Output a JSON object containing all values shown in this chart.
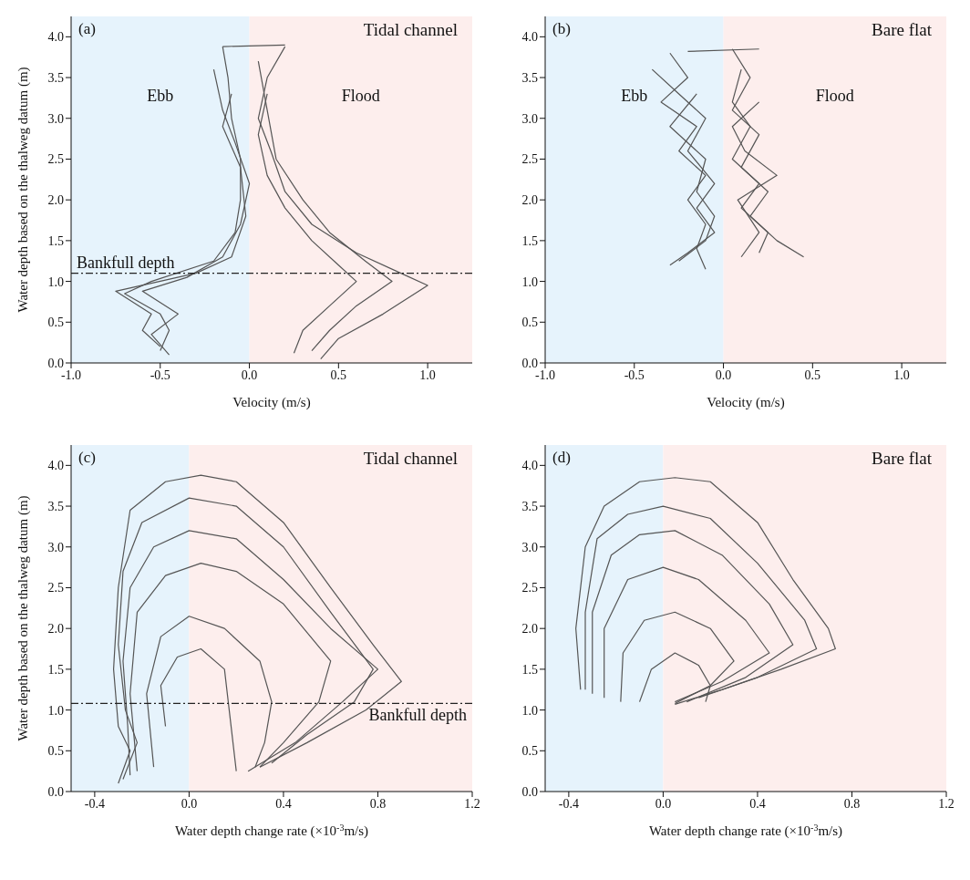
{
  "chart_data": [
    {
      "type": "line",
      "annotations": [
        "(a)",
        "Tidal channel"
      ],
      "xlabel": "Velocity (m/s)",
      "ylabel": "Water depth based on the thalweg datum (m)",
      "xlim": [
        -1,
        1.25
      ],
      "xticks": [
        {
          "value": -1,
          "label": "-1.0"
        },
        {
          "value": -0.5,
          "label": "-0.5"
        },
        {
          "value": 0,
          "label": "0.0"
        },
        {
          "value": 0.5,
          "label": "0.5"
        },
        {
          "value": 1,
          "label": "1.0"
        }
      ],
      "ylim": [
        0,
        4.25
      ],
      "yticks": [
        {
          "value": 0,
          "label": "0.0"
        },
        {
          "value": 0.5,
          "label": "0.5"
        },
        {
          "value": 1,
          "label": "1.0"
        },
        {
          "value": 1.5,
          "label": "1.5"
        },
        {
          "value": 2,
          "label": "2.0"
        },
        {
          "value": 2.5,
          "label": "2.5"
        },
        {
          "value": 3,
          "label": "3.0"
        },
        {
          "value": 3.5,
          "label": "3.5"
        },
        {
          "value": 4,
          "label": "4.0"
        }
      ],
      "grid": false,
      "legend": false,
      "marker": "none",
      "bands": [
        {
          "axis": "x",
          "from": -1,
          "to": 0,
          "label": "Ebb",
          "color": "#e6f3fc"
        },
        {
          "axis": "x",
          "from": 0,
          "to": 1.25,
          "label": "Flood",
          "color": "#fdeeed"
        }
      ],
      "ref_lines": [
        {
          "axis": "y",
          "value": 1.1,
          "label": "Bankfull depth",
          "line_style": "dashed",
          "color": "#222222"
        }
      ],
      "series": [
        {
          "color": "#555555",
          "x": [
            -0.15,
            -0.12,
            -0.1,
            -0.05,
            -0.05,
            -0.08,
            -0.2,
            -0.55,
            -0.7,
            -0.5,
            -0.45,
            -0.5
          ],
          "values": [
            3.88,
            3.5,
            3.0,
            2.5,
            2.0,
            1.6,
            1.25,
            1.0,
            0.85,
            0.6,
            0.4,
            0.15
          ]
        },
        {
          "color": "#555555",
          "x": [
            -0.2,
            -0.15,
            -0.08,
            0,
            -0.05,
            -0.15,
            -0.35,
            -0.6,
            -0.4,
            -0.55,
            -0.45
          ],
          "values": [
            3.6,
            3.1,
            2.7,
            2.2,
            1.7,
            1.3,
            1.05,
            0.88,
            0.6,
            0.35,
            0.1
          ]
        },
        {
          "color": "#555555",
          "x": [
            -0.1,
            -0.15,
            -0.05,
            -0.02,
            -0.1,
            -0.3,
            -0.75,
            -0.55,
            -0.6,
            -0.5
          ],
          "values": [
            3.3,
            2.9,
            2.4,
            1.8,
            1.3,
            1.1,
            0.88,
            0.6,
            0.4,
            0.2
          ]
        },
        {
          "color": "#555555",
          "x": [
            0.2,
            0.1,
            0.05,
            0.12,
            0.2,
            0.35,
            0.6,
            0.85,
            1.0,
            0.75,
            0.5,
            0.4
          ],
          "values": [
            3.88,
            3.5,
            3.0,
            2.6,
            2.1,
            1.7,
            1.35,
            1.1,
            0.95,
            0.6,
            0.3,
            0.05
          ]
        },
        {
          "color": "#555555",
          "x": [
            0.05,
            0.1,
            0.15,
            0.3,
            0.45,
            0.65,
            0.8,
            0.6,
            0.45,
            0.35
          ],
          "values": [
            3.7,
            3.1,
            2.5,
            2.0,
            1.6,
            1.25,
            1.0,
            0.7,
            0.4,
            0.15
          ]
        },
        {
          "color": "#555555",
          "x": [
            0.1,
            0.05,
            0.1,
            0.2,
            0.35,
            0.5,
            0.6,
            0.45,
            0.3,
            0.25
          ],
          "values": [
            3.3,
            2.8,
            2.3,
            1.9,
            1.5,
            1.2,
            1.0,
            0.7,
            0.4,
            0.12
          ]
        },
        {
          "color": "#555555",
          "x": [
            -0.15,
            0.2
          ],
          "values": [
            3.88,
            3.9
          ]
        }
      ]
    },
    {
      "type": "line",
      "annotations": [
        "(b)",
        "Bare flat"
      ],
      "xlabel": "Velocity (m/s)",
      "xlim": [
        -1,
        1.25
      ],
      "xticks": [
        {
          "value": -1,
          "label": "-1.0"
        },
        {
          "value": -0.5,
          "label": "-0.5"
        },
        {
          "value": 0,
          "label": "0.0"
        },
        {
          "value": 0.5,
          "label": "0.5"
        },
        {
          "value": 1,
          "label": "1.0"
        }
      ],
      "ylim": [
        0,
        4.25
      ],
      "yticks": [
        {
          "value": 0,
          "label": "0.0"
        },
        {
          "value": 0.5,
          "label": "0.5"
        },
        {
          "value": 1,
          "label": "1.0"
        },
        {
          "value": 1.5,
          "label": "1.5"
        },
        {
          "value": 2,
          "label": "2.0"
        },
        {
          "value": 2.5,
          "label": "2.5"
        },
        {
          "value": 3,
          "label": "3.0"
        },
        {
          "value": 3.5,
          "label": "3.5"
        },
        {
          "value": 4,
          "label": "4.0"
        }
      ],
      "grid": false,
      "legend": false,
      "marker": "none",
      "bands": [
        {
          "axis": "x",
          "from": -1,
          "to": 0,
          "label": "Ebb",
          "color": "#e6f3fc"
        },
        {
          "axis": "x",
          "from": 0,
          "to": 1.25,
          "label": "Flood",
          "color": "#fdeeed"
        }
      ],
      "series": [
        {
          "color": "#555555",
          "x": [
            -0.3,
            -0.2,
            -0.35,
            -0.15,
            -0.25,
            -0.1,
            -0.2,
            -0.1,
            -0.15,
            -0.1
          ],
          "values": [
            3.8,
            3.5,
            3.2,
            2.9,
            2.6,
            2.3,
            2.0,
            1.7,
            1.4,
            1.15
          ]
        },
        {
          "color": "#555555",
          "x": [
            -0.4,
            -0.25,
            -0.1,
            -0.2,
            -0.05,
            -0.15,
            -0.05,
            -0.2,
            -0.3
          ],
          "values": [
            3.6,
            3.3,
            3.0,
            2.6,
            2.2,
            1.9,
            1.6,
            1.35,
            1.2
          ]
        },
        {
          "color": "#555555",
          "x": [
            -0.15,
            -0.3,
            -0.1,
            -0.15,
            -0.05,
            -0.1,
            -0.25
          ],
          "values": [
            3.3,
            2.9,
            2.5,
            2.1,
            1.8,
            1.5,
            1.25
          ]
        },
        {
          "color": "#555555",
          "x": [
            0.05,
            0.15,
            0.05,
            0.2,
            0.1,
            0.25,
            0.15,
            0.3,
            0.45
          ],
          "values": [
            3.85,
            3.5,
            3.1,
            2.8,
            2.4,
            2.1,
            1.8,
            1.5,
            1.3
          ]
        },
        {
          "color": "#555555",
          "x": [
            0.1,
            0.05,
            0.15,
            0.05,
            0.2,
            0.1,
            0.25,
            0.2
          ],
          "values": [
            3.6,
            3.2,
            2.9,
            2.5,
            2.2,
            1.9,
            1.6,
            1.35
          ]
        },
        {
          "color": "#555555",
          "x": [
            0.2,
            0.05,
            0.12,
            0.3,
            0.08,
            0.2,
            0.1
          ],
          "values": [
            3.2,
            2.9,
            2.6,
            2.3,
            2.0,
            1.6,
            1.3
          ]
        },
        {
          "color": "#555555",
          "x": [
            -0.2,
            0.2
          ],
          "values": [
            3.82,
            3.85
          ]
        }
      ]
    },
    {
      "type": "line",
      "annotations": [
        "(c)",
        "Tidal channel"
      ],
      "xlabel": "Water depth change rate (×10$^{-3}$m/s)",
      "ylabel": "Water depth based on the thalweg datum (m)",
      "xlim": [
        -0.5,
        1.2
      ],
      "xticks": [
        {
          "value": -0.4,
          "label": "-0.4"
        },
        {
          "value": 0,
          "label": "0.0"
        },
        {
          "value": 0.4,
          "label": "0.4"
        },
        {
          "value": 0.8,
          "label": "0.8"
        },
        {
          "value": 1.2,
          "label": "1.2"
        }
      ],
      "ylim": [
        0,
        4.25
      ],
      "yticks": [
        {
          "value": 0,
          "label": "0.0"
        },
        {
          "value": 0.5,
          "label": "0.5"
        },
        {
          "value": 1,
          "label": "1.0"
        },
        {
          "value": 1.5,
          "label": "1.5"
        },
        {
          "value": 2,
          "label": "2.0"
        },
        {
          "value": 2.5,
          "label": "2.5"
        },
        {
          "value": 3,
          "label": "3.0"
        },
        {
          "value": 3.5,
          "label": "3.5"
        },
        {
          "value": 4,
          "label": "4.0"
        }
      ],
      "grid": false,
      "legend": false,
      "marker": "none",
      "bands": [
        {
          "axis": "x",
          "from": -0.5,
          "to": 0,
          "color": "#e6f3fc"
        },
        {
          "axis": "x",
          "from": 0,
          "to": 1.2,
          "color": "#fdeeed"
        }
      ],
      "ref_lines": [
        {
          "axis": "y",
          "value": 1.08,
          "label": "Bankfull depth",
          "line_style": "dashed",
          "color": "#222222"
        }
      ],
      "series": [
        {
          "color": "#555555",
          "x": [
            -0.3,
            -0.25,
            -0.3,
            -0.32,
            -0.3,
            -0.25,
            -0.1,
            0.05,
            0.2,
            0.4,
            0.6,
            0.78,
            0.9,
            0.75,
            0.5,
            0.3
          ],
          "values": [
            0.1,
            0.5,
            0.8,
            1.5,
            2.5,
            3.45,
            3.8,
            3.88,
            3.8,
            3.3,
            2.5,
            1.8,
            1.35,
            1.0,
            0.6,
            0.3
          ]
        },
        {
          "color": "#555555",
          "x": [
            -0.28,
            -0.22,
            -0.27,
            -0.3,
            -0.28,
            -0.2,
            0,
            0.2,
            0.4,
            0.6,
            0.78,
            0.7,
            0.5,
            0.35
          ],
          "values": [
            0.15,
            0.6,
            1.0,
            1.8,
            2.7,
            3.3,
            3.6,
            3.5,
            3.0,
            2.2,
            1.5,
            1.1,
            0.7,
            0.35
          ]
        },
        {
          "color": "#555555",
          "x": [
            -0.25,
            -0.26,
            -0.28,
            -0.25,
            -0.15,
            0,
            0.2,
            0.4,
            0.6,
            0.8,
            0.65,
            0.45,
            0.25
          ],
          "values": [
            0.2,
            0.8,
            1.6,
            2.5,
            3.0,
            3.2,
            3.1,
            2.6,
            2.0,
            1.5,
            1.1,
            0.6,
            0.25
          ]
        },
        {
          "color": "#555555",
          "x": [
            -0.22,
            -0.25,
            -0.22,
            -0.1,
            0.05,
            0.2,
            0.4,
            0.6,
            0.55,
            0.4,
            0.3
          ],
          "values": [
            0.25,
            1.2,
            2.2,
            2.65,
            2.8,
            2.7,
            2.3,
            1.6,
            1.1,
            0.6,
            0.3
          ]
        },
        {
          "color": "#555555",
          "x": [
            -0.15,
            -0.18,
            -0.12,
            0,
            0.15,
            0.3,
            0.35,
            0.32,
            0.28
          ],
          "values": [
            0.3,
            1.2,
            1.9,
            2.15,
            2.0,
            1.6,
            1.1,
            0.6,
            0.3
          ]
        },
        {
          "color": "#555555",
          "x": [
            -0.1,
            -0.12,
            -0.05,
            0.05,
            0.15,
            0.17,
            0.2
          ],
          "values": [
            0.8,
            1.3,
            1.65,
            1.75,
            1.5,
            1.0,
            0.25
          ]
        }
      ]
    },
    {
      "type": "line",
      "annotations": [
        "(d)",
        "Bare flat"
      ],
      "xlabel": "Water depth change rate (×10$^{-3}$m/s)",
      "xlim": [
        -0.5,
        1.2
      ],
      "xticks": [
        {
          "value": -0.4,
          "label": "-0.4"
        },
        {
          "value": 0,
          "label": "0.0"
        },
        {
          "value": 0.4,
          "label": "0.4"
        },
        {
          "value": 0.8,
          "label": "0.8"
        },
        {
          "value": 1.2,
          "label": "1.2"
        }
      ],
      "ylim": [
        0,
        4.25
      ],
      "yticks": [
        {
          "value": 0,
          "label": "0.0"
        },
        {
          "value": 0.5,
          "label": "0.5"
        },
        {
          "value": 1,
          "label": "1.0"
        },
        {
          "value": 1.5,
          "label": "1.5"
        },
        {
          "value": 2,
          "label": "2.0"
        },
        {
          "value": 2.5,
          "label": "2.5"
        },
        {
          "value": 3,
          "label": "3.0"
        },
        {
          "value": 3.5,
          "label": "3.5"
        },
        {
          "value": 4,
          "label": "4.0"
        }
      ],
      "grid": false,
      "legend": false,
      "marker": "none",
      "bands": [
        {
          "axis": "x",
          "from": -0.5,
          "to": 0,
          "color": "#e6f3fc"
        },
        {
          "axis": "x",
          "from": 0,
          "to": 1.2,
          "color": "#fdeeed"
        }
      ],
      "series": [
        {
          "color": "#555555",
          "x": [
            -0.35,
            -0.37,
            -0.33,
            -0.25,
            -0.1,
            0.05,
            0.2,
            0.4,
            0.55,
            0.7,
            0.73,
            0.5,
            0.25,
            0.05
          ],
          "values": [
            1.25,
            2.0,
            3.0,
            3.5,
            3.8,
            3.85,
            3.8,
            3.3,
            2.6,
            2.0,
            1.75,
            1.5,
            1.25,
            1.07
          ]
        },
        {
          "color": "#555555",
          "x": [
            -0.33,
            -0.33,
            -0.28,
            -0.15,
            0,
            0.2,
            0.4,
            0.6,
            0.65,
            0.4,
            0.15
          ],
          "values": [
            1.25,
            2.2,
            3.1,
            3.4,
            3.5,
            3.35,
            2.8,
            2.1,
            1.75,
            1.4,
            1.15
          ]
        },
        {
          "color": "#555555",
          "x": [
            -0.3,
            -0.3,
            -0.22,
            -0.1,
            0.05,
            0.25,
            0.45,
            0.55,
            0.35,
            0.1
          ],
          "values": [
            1.2,
            2.2,
            2.9,
            3.15,
            3.2,
            2.9,
            2.3,
            1.8,
            1.4,
            1.1
          ]
        },
        {
          "color": "#555555",
          "x": [
            -0.25,
            -0.25,
            -0.15,
            0,
            0.15,
            0.35,
            0.45,
            0.25,
            0.05
          ],
          "values": [
            1.15,
            2.0,
            2.6,
            2.75,
            2.6,
            2.1,
            1.7,
            1.35,
            1.1
          ]
        },
        {
          "color": "#555555",
          "x": [
            -0.18,
            -0.17,
            -0.08,
            0.05,
            0.2,
            0.3,
            0.2,
            0.05
          ],
          "values": [
            1.1,
            1.7,
            2.1,
            2.2,
            2.0,
            1.6,
            1.3,
            1.08
          ]
        },
        {
          "color": "#555555",
          "x": [
            -0.1,
            -0.05,
            0.05,
            0.15,
            0.2,
            0.18
          ],
          "values": [
            1.1,
            1.5,
            1.7,
            1.55,
            1.3,
            1.1
          ]
        }
      ]
    }
  ]
}
